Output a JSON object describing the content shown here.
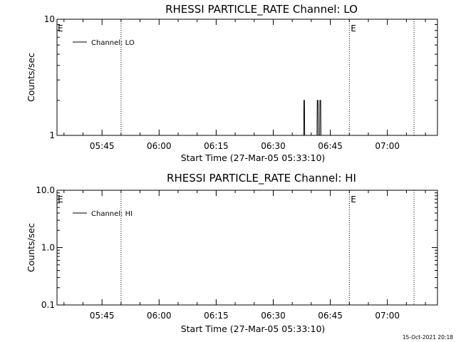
{
  "footer": {
    "timestamp": "15-Oct-2021 20:18"
  },
  "chart_data": [
    {
      "type": "line",
      "title": "RHESSI PARTICLE_RATE Channel: LO",
      "xlabel": "Start Time (27-Mar-05 05:33:10)",
      "ylabel": "Counts/sec",
      "yscale": "log",
      "ylim": [
        1,
        10
      ],
      "xlim": [
        "05:33:10",
        "07:13:10"
      ],
      "x_ticks": [
        "05:45",
        "06:00",
        "06:15",
        "06:30",
        "06:45",
        "07:00"
      ],
      "y_ticks": [
        {
          "value": 1,
          "label": "1"
        },
        {
          "value": 10,
          "label": "10"
        }
      ],
      "legend": {
        "position": "top-left"
      },
      "series": [
        {
          "name": "Channel: LO",
          "x": [
            "05:33:10",
            "06:38:00",
            "06:38:04",
            "06:38:12",
            "06:38:16",
            "06:41:30",
            "06:41:34",
            "06:41:46",
            "06:41:50",
            "06:42:12",
            "06:42:16",
            "06:42:28",
            "06:42:32",
            "07:13:10"
          ],
          "y": [
            1,
            1,
            2,
            2,
            1,
            1,
            2,
            2,
            1,
            1,
            2,
            2,
            1,
            1
          ]
        }
      ],
      "vlines": [
        {
          "x": "05:50:00",
          "style": "dotted",
          "label": ""
        },
        {
          "x": "06:50:00",
          "style": "dotted",
          "label": "E"
        },
        {
          "x": "07:07:00",
          "style": "dotted",
          "label": ""
        }
      ],
      "corner_marker": "E",
      "grid": false
    },
    {
      "type": "line",
      "title": "RHESSI PARTICLE_RATE Channel: HI",
      "xlabel": "Start Time (27-Mar-05 05:33:10)",
      "ylabel": "Counts/sec",
      "yscale": "log",
      "ylim": [
        0.1,
        10
      ],
      "xlim": [
        "05:33:10",
        "07:13:10"
      ],
      "x_ticks": [
        "05:45",
        "06:00",
        "06:15",
        "06:30",
        "06:45",
        "07:00"
      ],
      "y_ticks": [
        {
          "value": 0.1,
          "label": "0.1"
        },
        {
          "value": 1,
          "label": "1.0"
        },
        {
          "value": 10,
          "label": "10.0"
        }
      ],
      "legend": {
        "position": "top-left"
      },
      "series": [
        {
          "name": "Channel: HI",
          "x": [],
          "y": []
        }
      ],
      "vlines": [
        {
          "x": "05:50:00",
          "style": "dotted",
          "label": ""
        },
        {
          "x": "06:50:00",
          "style": "dotted",
          "label": "E"
        },
        {
          "x": "07:07:00",
          "style": "dotted",
          "label": ""
        }
      ],
      "corner_marker": "E",
      "grid": false
    }
  ]
}
